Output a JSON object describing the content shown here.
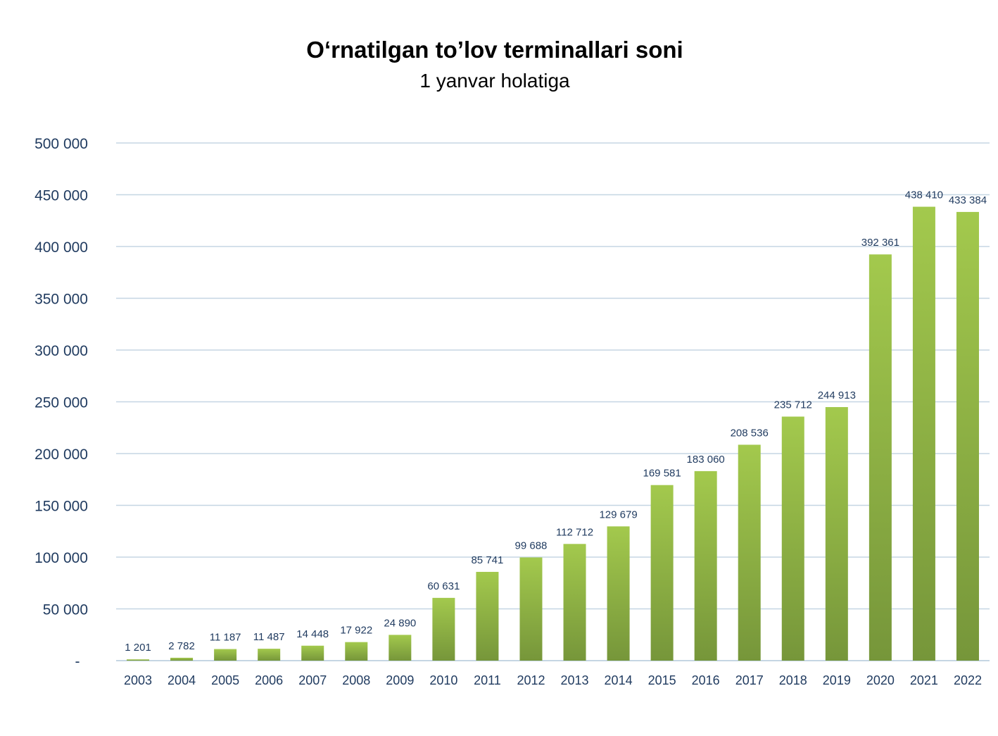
{
  "chart_data": {
    "type": "bar",
    "title": "O‘rnatilgan to’lov terminallari soni",
    "subtitle": "1 yanvar holatiga",
    "categories": [
      "2003",
      "2004",
      "2005",
      "2006",
      "2007",
      "2008",
      "2009",
      "2010",
      "2011",
      "2012",
      "2013",
      "2014",
      "2015",
      "2016",
      "2017",
      "2018",
      "2019",
      "2020",
      "2021",
      "2022"
    ],
    "values": [
      1201,
      2782,
      11187,
      11487,
      14448,
      17922,
      24890,
      60631,
      85741,
      99688,
      112712,
      129679,
      169581,
      183060,
      208536,
      235712,
      244913,
      392361,
      438410,
      433384
    ],
    "data_labels": [
      "1 201",
      "2 782",
      "11 187",
      "11 487",
      "14 448",
      "17 922",
      "24 890",
      "60 631",
      "85 741",
      "99 688",
      "112 712",
      "129 679",
      "169 581",
      "183 060",
      "208 536",
      "235 712",
      "244 913",
      "392 361",
      "438 410",
      "433 384"
    ],
    "yticks": [
      0,
      50000,
      100000,
      150000,
      200000,
      250000,
      300000,
      350000,
      400000,
      450000,
      500000
    ],
    "ytick_labels": [
      "-",
      "50 000",
      "100 000",
      "150 000",
      "200 000",
      "250 000",
      "300 000",
      "350 000",
      "400 000",
      "450 000",
      "500 000"
    ],
    "ylim": [
      0,
      500000
    ],
    "xlabel": "",
    "ylabel": "",
    "grid": true,
    "colors": {
      "bar_top": "#a3c94d",
      "bar_bottom": "#76963a",
      "grid": "#c5d6e3",
      "axis": "#c5d6e3",
      "text": "#1f3a5f"
    }
  }
}
